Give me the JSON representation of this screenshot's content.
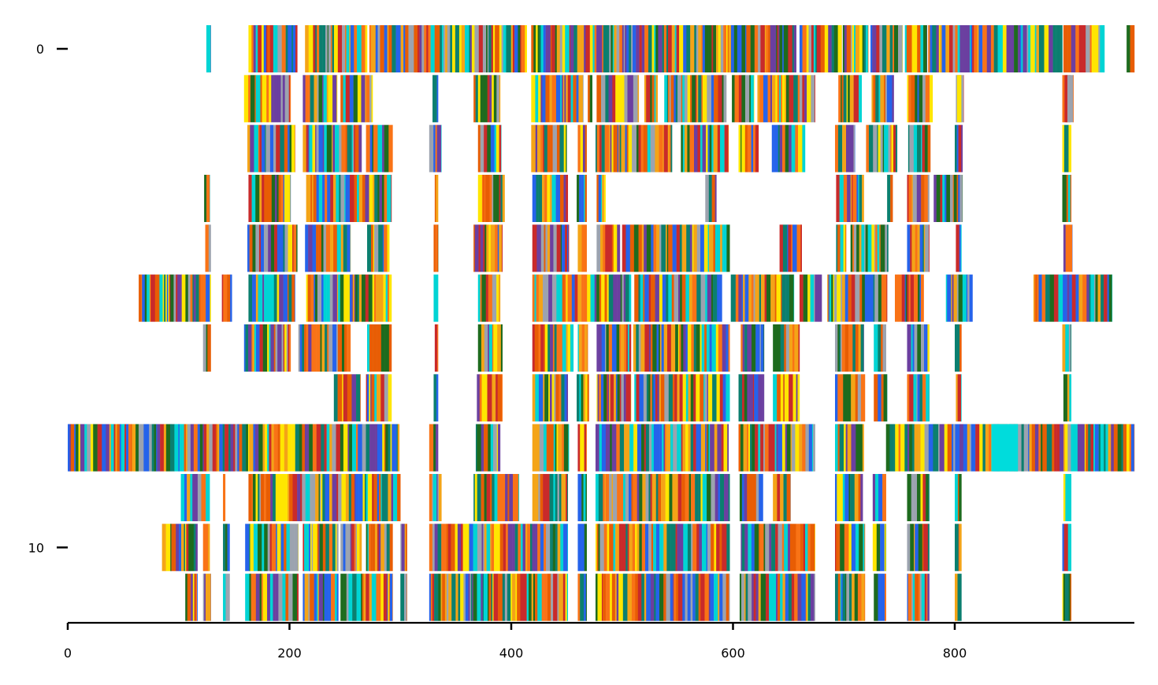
{
  "chart_data": {
    "type": "heatmap",
    "title": "",
    "xlabel": "",
    "ylabel": "",
    "xlim": [
      0,
      962
    ],
    "ylim": [
      -0.5,
      11.5
    ],
    "y_inverted": true,
    "x_ticks": [
      "0",
      "200",
      "400",
      "600",
      "800"
    ],
    "y_ticks": [
      "0",
      "10"
    ],
    "grid": false,
    "legend": "none",
    "description_colors": [
      "#1e6b1e",
      "#c92a2a",
      "#2563eb",
      "#f4a417",
      "#6b3fa0",
      "#00d4d4",
      "#ffe600",
      "#e85d04",
      "#0b7f6f",
      "#9ca3af",
      "#f97316"
    ],
    "rows": [
      {
        "row": 0,
        "segments": [
          [
            125,
            129
          ],
          [
            163,
            207
          ],
          [
            214,
            270
          ],
          [
            272,
            414
          ],
          [
            418,
            657
          ],
          [
            660,
            698
          ],
          [
            699,
            722
          ],
          [
            724,
            753
          ],
          [
            755,
            775
          ],
          [
            776,
            897
          ],
          [
            898,
            935
          ],
          [
            955,
            962
          ]
        ]
      },
      {
        "row": 1,
        "segments": [
          [
            159,
            201
          ],
          [
            212,
            243
          ],
          [
            246,
            275
          ],
          [
            329,
            334
          ],
          [
            366,
            390
          ],
          [
            418,
            465
          ],
          [
            469,
            473
          ],
          [
            477,
            515
          ],
          [
            520,
            532
          ],
          [
            538,
            594
          ],
          [
            599,
            619
          ],
          [
            622,
            674
          ],
          [
            695,
            716
          ],
          [
            725,
            745
          ],
          [
            757,
            780
          ],
          [
            801,
            806
          ],
          [
            802,
            808
          ],
          [
            900,
            904
          ],
          [
            897,
            907
          ]
        ]
      },
      {
        "row": 2,
        "segments": [
          [
            162,
            205
          ],
          [
            212,
            265
          ],
          [
            269,
            293
          ],
          [
            326,
            337
          ],
          [
            370,
            391
          ],
          [
            418,
            450
          ],
          [
            460,
            468
          ],
          [
            476,
            545
          ],
          [
            553,
            596
          ],
          [
            605,
            623
          ],
          [
            635,
            665
          ],
          [
            692,
            710
          ],
          [
            720,
            748
          ],
          [
            758,
            778
          ],
          [
            800,
            807
          ],
          [
            897,
            905
          ]
        ]
      },
      {
        "row": 3,
        "segments": [
          [
            123,
            128
          ],
          [
            163,
            201
          ],
          [
            215,
            292
          ],
          [
            331,
            334
          ],
          [
            370,
            394
          ],
          [
            419,
            451
          ],
          [
            459,
            468
          ],
          [
            477,
            485
          ],
          [
            575,
            585
          ],
          [
            693,
            718
          ],
          [
            739,
            744
          ],
          [
            757,
            777
          ],
          [
            781,
            807
          ],
          [
            897,
            905
          ]
        ]
      },
      {
        "row": 4,
        "segments": [
          [
            124,
            129
          ],
          [
            162,
            207
          ],
          [
            214,
            255
          ],
          [
            270,
            290
          ],
          [
            330,
            334
          ],
          [
            366,
            392
          ],
          [
            419,
            452
          ],
          [
            460,
            468
          ],
          [
            477,
            498
          ],
          [
            500,
            597
          ],
          [
            642,
            662
          ],
          [
            693,
            702
          ],
          [
            706,
            740
          ],
          [
            757,
            777
          ],
          [
            801,
            806
          ],
          [
            898,
            906
          ]
        ]
      },
      {
        "row": 5,
        "segments": [
          [
            64,
            129
          ],
          [
            139,
            148
          ],
          [
            163,
            205
          ],
          [
            215,
            292
          ],
          [
            330,
            334
          ],
          [
            370,
            390
          ],
          [
            419,
            508
          ],
          [
            511,
            590
          ],
          [
            598,
            655
          ],
          [
            660,
            680
          ],
          [
            685,
            739
          ],
          [
            746,
            772
          ],
          [
            792,
            816
          ],
          [
            871,
            942
          ]
        ]
      },
      {
        "row": 6,
        "segments": [
          [
            122,
            129
          ],
          [
            159,
            201
          ],
          [
            208,
            255
          ],
          [
            270,
            292
          ],
          [
            331,
            334
          ],
          [
            370,
            392
          ],
          [
            419,
            456
          ],
          [
            460,
            469
          ],
          [
            477,
            508
          ],
          [
            510,
            597
          ],
          [
            607,
            628
          ],
          [
            636,
            660
          ],
          [
            692,
            718
          ],
          [
            727,
            738
          ],
          [
            757,
            777
          ],
          [
            800,
            806
          ],
          [
            897,
            905
          ]
        ]
      },
      {
        "row": 7,
        "segments": [
          [
            240,
            264
          ],
          [
            269,
            292
          ],
          [
            330,
            334
          ],
          [
            369,
            392
          ],
          [
            419,
            451
          ],
          [
            459,
            470
          ],
          [
            477,
            508
          ],
          [
            511,
            597
          ],
          [
            605,
            628
          ],
          [
            636,
            660
          ],
          [
            692,
            719
          ],
          [
            727,
            739
          ],
          [
            757,
            777
          ],
          [
            801,
            806
          ],
          [
            898,
            905
          ]
        ]
      },
      {
        "row": 8,
        "segments": [
          [
            0,
            299
          ],
          [
            326,
            334
          ],
          [
            368,
            390
          ],
          [
            419,
            452
          ],
          [
            460,
            468
          ],
          [
            476,
            596
          ],
          [
            605,
            674
          ],
          [
            692,
            718
          ],
          [
            738,
            962
          ]
        ]
      },
      {
        "row": 9,
        "segments": [
          [
            102,
            128
          ],
          [
            140,
            142
          ],
          [
            163,
            300
          ],
          [
            326,
            337
          ],
          [
            366,
            407
          ],
          [
            419,
            451
          ],
          [
            460,
            468
          ],
          [
            476,
            597
          ],
          [
            606,
            627
          ],
          [
            636,
            652
          ],
          [
            692,
            717
          ],
          [
            726,
            738
          ],
          [
            757,
            777
          ],
          [
            800,
            806
          ],
          [
            898,
            905
          ]
        ]
      },
      {
        "row": 10,
        "segments": [
          [
            85,
            117
          ],
          [
            122,
            128
          ],
          [
            140,
            146
          ],
          [
            160,
            208
          ],
          [
            212,
            244
          ],
          [
            246,
            265
          ],
          [
            269,
            293
          ],
          [
            300,
            306
          ],
          [
            326,
            451
          ],
          [
            460,
            468
          ],
          [
            476,
            597
          ],
          [
            607,
            674
          ],
          [
            692,
            719
          ],
          [
            726,
            738
          ],
          [
            757,
            777
          ],
          [
            800,
            806
          ],
          [
            897,
            905
          ]
        ]
      },
      {
        "row": 11,
        "segments": [
          [
            106,
            117
          ],
          [
            122,
            129
          ],
          [
            140,
            146
          ],
          [
            160,
            208
          ],
          [
            212,
            244
          ],
          [
            246,
            293
          ],
          [
            300,
            306
          ],
          [
            326,
            451
          ],
          [
            460,
            468
          ],
          [
            476,
            597
          ],
          [
            606,
            674
          ],
          [
            692,
            719
          ],
          [
            727,
            738
          ],
          [
            757,
            777
          ],
          [
            800,
            806
          ],
          [
            897,
            905
          ]
        ]
      }
    ]
  },
  "axes": {
    "x_tick_values": [
      0,
      200,
      400,
      600,
      800
    ],
    "y_tick_values": [
      0,
      10
    ]
  }
}
